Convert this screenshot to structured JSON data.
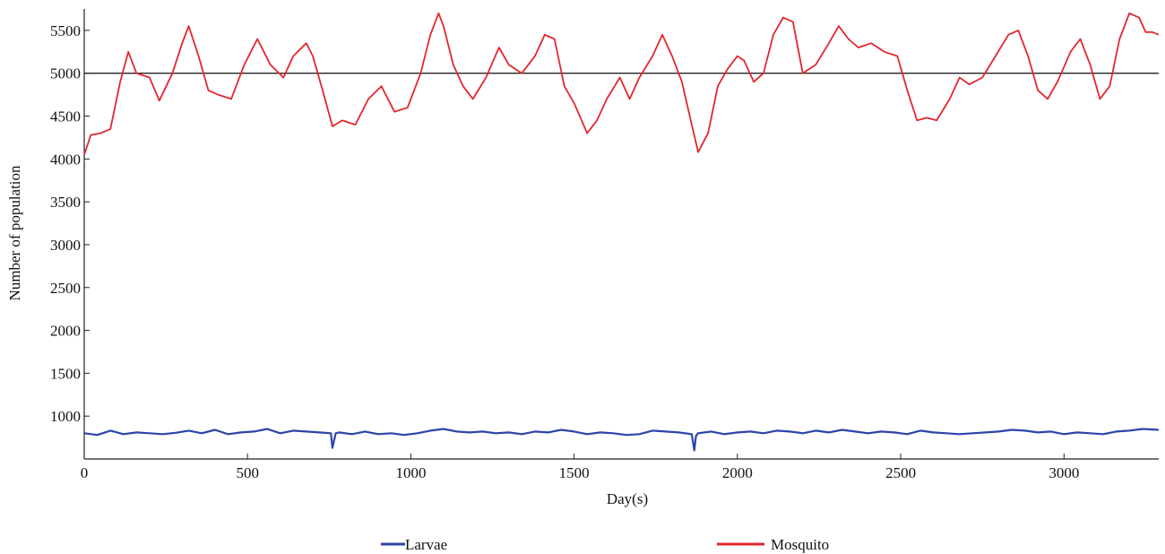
{
  "chart_data": {
    "type": "line",
    "xlabel": "Day(s)",
    "ylabel": "Number of population",
    "xlim": [
      0,
      3290
    ],
    "ylim": [
      500,
      5750
    ],
    "x_ticks": [
      0,
      500,
      1000,
      1500,
      2000,
      2500,
      3000
    ],
    "y_ticks": [
      1000,
      1500,
      2000,
      2500,
      3000,
      3500,
      4000,
      4500,
      5000,
      5500
    ],
    "reference_line": {
      "y": 5000,
      "color": "#222222"
    },
    "legend": {
      "position": "bottom",
      "entries": [
        "Larvae",
        "Mosquito"
      ]
    },
    "series": [
      {
        "name": "Larvae",
        "color": "#2b45a8",
        "x": [
          0,
          40,
          80,
          120,
          160,
          200,
          240,
          280,
          320,
          360,
          400,
          440,
          480,
          520,
          560,
          600,
          640,
          680,
          720,
          755,
          760,
          770,
          780,
          820,
          860,
          900,
          940,
          980,
          1020,
          1060,
          1100,
          1140,
          1180,
          1220,
          1260,
          1300,
          1340,
          1380,
          1420,
          1460,
          1500,
          1540,
          1580,
          1620,
          1660,
          1700,
          1740,
          1780,
          1820,
          1860,
          1868,
          1873,
          1880,
          1920,
          1960,
          2000,
          2040,
          2080,
          2120,
          2160,
          2200,
          2240,
          2280,
          2320,
          2360,
          2400,
          2440,
          2480,
          2520,
          2560,
          2600,
          2640,
          2680,
          2720,
          2760,
          2800,
          2840,
          2880,
          2920,
          2960,
          3000,
          3040,
          3080,
          3120,
          3160,
          3200,
          3240,
          3290
        ],
        "values": [
          800,
          780,
          830,
          790,
          810,
          800,
          790,
          805,
          830,
          800,
          840,
          790,
          810,
          820,
          850,
          800,
          830,
          820,
          810,
          800,
          630,
          800,
          810,
          790,
          820,
          790,
          800,
          780,
          800,
          830,
          850,
          820,
          810,
          820,
          800,
          810,
          790,
          820,
          810,
          840,
          820,
          790,
          810,
          800,
          780,
          790,
          830,
          820,
          810,
          790,
          600,
          770,
          800,
          820,
          790,
          810,
          820,
          800,
          830,
          820,
          800,
          830,
          810,
          840,
          820,
          800,
          820,
          810,
          790,
          830,
          810,
          800,
          790,
          800,
          810,
          820,
          840,
          830,
          810,
          820,
          790,
          810,
          800,
          790,
          820,
          830,
          850,
          840
        ]
      },
      {
        "name": "Mosquito",
        "color": "#e3262e",
        "x": [
          0,
          20,
          50,
          80,
          110,
          135,
          160,
          200,
          230,
          270,
          300,
          320,
          350,
          380,
          410,
          450,
          490,
          530,
          570,
          610,
          640,
          680,
          700,
          730,
          760,
          790,
          830,
          870,
          910,
          950,
          990,
          1030,
          1060,
          1085,
          1100,
          1130,
          1160,
          1190,
          1230,
          1270,
          1300,
          1340,
          1380,
          1410,
          1440,
          1470,
          1500,
          1540,
          1570,
          1600,
          1640,
          1670,
          1700,
          1740,
          1770,
          1800,
          1830,
          1860,
          1880,
          1910,
          1940,
          1970,
          2000,
          2020,
          2050,
          2080,
          2110,
          2140,
          2170,
          2200,
          2240,
          2280,
          2310,
          2340,
          2370,
          2410,
          2450,
          2490,
          2520,
          2550,
          2580,
          2610,
          2650,
          2680,
          2710,
          2750,
          2790,
          2830,
          2860,
          2890,
          2920,
          2950,
          2980,
          3020,
          3050,
          3080,
          3110,
          3140,
          3170,
          3200,
          3230,
          3250,
          3270,
          3290
        ],
        "values": [
          4050,
          4280,
          4300,
          4350,
          4900,
          5250,
          5000,
          4950,
          4680,
          5000,
          5350,
          5550,
          5200,
          4800,
          4750,
          4700,
          5100,
          5400,
          5100,
          4950,
          5200,
          5350,
          5200,
          4800,
          4380,
          4450,
          4400,
          4700,
          4850,
          4550,
          4600,
          5000,
          5450,
          5700,
          5550,
          5100,
          4850,
          4700,
          4950,
          5300,
          5100,
          5000,
          5200,
          5450,
          5400,
          4850,
          4650,
          4300,
          4450,
          4700,
          4950,
          4700,
          4950,
          5200,
          5450,
          5200,
          4900,
          4400,
          4080,
          4300,
          4850,
          5050,
          5200,
          5150,
          4900,
          5000,
          5450,
          5650,
          5600,
          5000,
          5100,
          5350,
          5550,
          5400,
          5300,
          5350,
          5250,
          5200,
          4800,
          4450,
          4480,
          4450,
          4700,
          4950,
          4870,
          4950,
          5200,
          5450,
          5500,
          5200,
          4800,
          4700,
          4900,
          5250,
          5400,
          5100,
          4700,
          4850,
          5400,
          5700,
          5650,
          5480,
          5480,
          5450
        ]
      }
    ]
  }
}
